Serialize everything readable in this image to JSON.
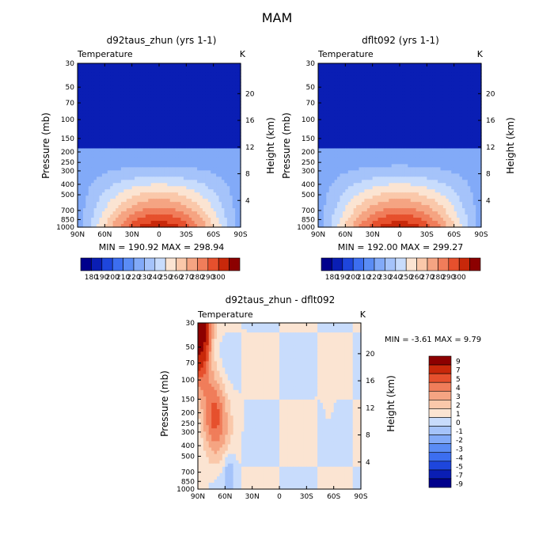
{
  "page": {
    "title": "MAM"
  },
  "panels": [
    {
      "title": "d92taus_zhun (yrs 1-1)",
      "left_label": "Temperature",
      "right_label": "K",
      "y_left": "Pressure (mb)",
      "y_right": "Height (km)",
      "stats": "MIN = 190.92   MAX = 298.94"
    },
    {
      "title": "dflt092 (yrs 1-1)",
      "left_label": "Temperature",
      "right_label": "K",
      "y_left": "Pressure (mb)",
      "y_right": "Height (km)",
      "stats": "MIN = 192.00   MAX = 299.27"
    },
    {
      "title": "d92taus_zhun - dflt092",
      "left_label": "Temperature",
      "right_label": "K",
      "y_left": "Pressure (mb)",
      "y_right": "Height (km)",
      "stats": "MIN =   -3.61   MAX =    9.79"
    }
  ],
  "colors": {
    "abs": [
      "#00008c",
      "#0a1eb4",
      "#1e46dc",
      "#3c6ef0",
      "#5a8cf5",
      "#82aaf8",
      "#a5c3fa",
      "#c8dcfc",
      "#fbe4d2",
      "#fac8aa",
      "#f5a482",
      "#f07d5a",
      "#e6502d",
      "#c8280a",
      "#8c0000"
    ],
    "diff": [
      "#00008c",
      "#0a1eb4",
      "#1e46dc",
      "#3c6ef0",
      "#5a8cf5",
      "#82aaf8",
      "#a5c3fa",
      "#c8dcfc",
      "#fbe4d2",
      "#fac8aa",
      "#f5a482",
      "#f07d5a",
      "#e6502d",
      "#c8280a",
      "#8c0000"
    ]
  },
  "colorbars": {
    "abs_labels": [
      "180",
      "190",
      "200",
      "210",
      "220",
      "230",
      "240",
      "250",
      "260",
      "270",
      "280",
      "290",
      "300"
    ],
    "diff_labels": [
      "9",
      "7",
      "5",
      "4",
      "3",
      "2",
      "1",
      "0",
      "-1",
      "-2",
      "-3",
      "-4",
      "-5",
      "-7",
      "-9"
    ]
  },
  "chart_data": [
    {
      "type": "contour",
      "title": "d92taus_zhun (yrs 1-1)",
      "variable": "Temperature",
      "units": "K",
      "xlabel": "",
      "ylabel": "Pressure (mb)",
      "ylabel_right": "Height (km)",
      "x_ticks": [
        "90N",
        "60N",
        "30N",
        "0",
        "30S",
        "60S",
        "90S"
      ],
      "y_ticks": [
        "30",
        "50",
        "70",
        "100",
        "150",
        "200",
        "250",
        "300",
        "400",
        "500",
        "700",
        "850",
        "1000"
      ],
      "y_ticks_right": [
        "20",
        "16",
        "12",
        "8",
        "4"
      ],
      "y_scale": "log",
      "ylim": [
        1000,
        30
      ],
      "min": 190.92,
      "max": 298.94,
      "levels": [
        180,
        190,
        200,
        210,
        220,
        230,
        240,
        250,
        260,
        270,
        280,
        290,
        300
      ]
    },
    {
      "type": "contour",
      "title": "dflt092 (yrs 1-1)",
      "variable": "Temperature",
      "units": "K",
      "xlabel": "",
      "ylabel": "Pressure (mb)",
      "ylabel_right": "Height (km)",
      "x_ticks": [
        "90N",
        "60N",
        "30N",
        "0",
        "30S",
        "60S",
        "90S"
      ],
      "y_ticks": [
        "30",
        "50",
        "70",
        "100",
        "150",
        "200",
        "250",
        "300",
        "400",
        "500",
        "700",
        "850",
        "1000"
      ],
      "y_ticks_right": [
        "20",
        "16",
        "12",
        "8",
        "4"
      ],
      "y_scale": "log",
      "ylim": [
        1000,
        30
      ],
      "min": 192.0,
      "max": 299.27,
      "levels": [
        180,
        190,
        200,
        210,
        220,
        230,
        240,
        250,
        260,
        270,
        280,
        290,
        300
      ]
    },
    {
      "type": "contour",
      "title": "d92taus_zhun - dflt092",
      "variable": "Temperature",
      "units": "K",
      "xlabel": "",
      "ylabel": "Pressure (mb)",
      "ylabel_right": "Height (km)",
      "x_ticks": [
        "90N",
        "60N",
        "30N",
        "0",
        "30S",
        "60S",
        "90S"
      ],
      "y_ticks": [
        "30",
        "50",
        "70",
        "100",
        "150",
        "200",
        "250",
        "300",
        "400",
        "500",
        "700",
        "850",
        "1000"
      ],
      "y_ticks_right": [
        "20",
        "16",
        "12",
        "8",
        "4"
      ],
      "y_scale": "log",
      "ylim": [
        1000,
        30
      ],
      "min": -3.61,
      "max": 9.79,
      "levels": [
        -9,
        -7,
        -5,
        -4,
        -3,
        -2,
        -1,
        0,
        1,
        2,
        3,
        4,
        5,
        7,
        9
      ]
    }
  ]
}
